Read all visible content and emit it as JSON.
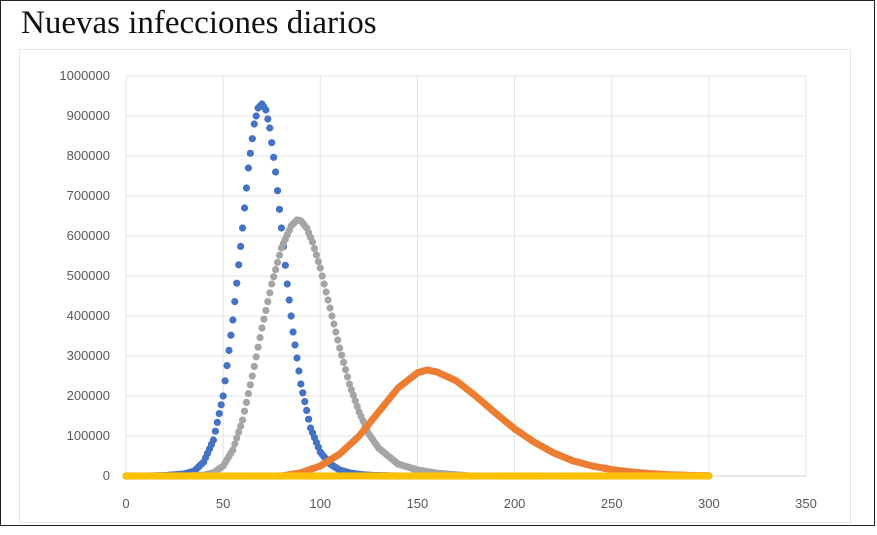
{
  "chart_data": {
    "type": "scatter",
    "title": "Nuevas infecciones diarios",
    "xlabel": "",
    "ylabel": "",
    "xlim": [
      0,
      350
    ],
    "ylim": [
      0,
      1000000
    ],
    "x_ticks": [
      0,
      50,
      100,
      150,
      200,
      250,
      300,
      350
    ],
    "y_ticks": [
      0,
      100000,
      200000,
      300000,
      400000,
      500000,
      600000,
      700000,
      800000,
      900000,
      1000000
    ],
    "grid": true,
    "legend": "none",
    "series": [
      {
        "color": "#4472C4",
        "x": [
          0,
          10,
          20,
          30,
          35,
          40,
          45,
          50,
          55,
          60,
          63,
          66,
          68,
          70,
          72,
          74,
          77,
          80,
          83,
          86,
          90,
          95,
          100,
          105,
          110,
          115,
          120,
          125,
          130,
          135,
          140
        ],
        "y": [
          0,
          0,
          1000,
          5000,
          12000,
          35000,
          90000,
          200000,
          390000,
          620000,
          770000,
          880000,
          920000,
          930000,
          915000,
          870000,
          760000,
          620000,
          480000,
          360000,
          230000,
          120000,
          60000,
          30000,
          15000,
          8000,
          4000,
          2000,
          1000,
          500,
          0
        ]
      },
      {
        "color": "#A5A5A5",
        "x": [
          0,
          20,
          30,
          40,
          45,
          50,
          55,
          60,
          65,
          70,
          75,
          80,
          85,
          88,
          90,
          93,
          96,
          100,
          105,
          110,
          115,
          120,
          125,
          130,
          140,
          150,
          160,
          170,
          175
        ],
        "y": [
          0,
          0,
          0,
          2000,
          8000,
          25000,
          65000,
          140000,
          250000,
          370000,
          480000,
          570000,
          625000,
          640000,
          638000,
          620000,
          585000,
          520000,
          420000,
          320000,
          230000,
          160000,
          105000,
          70000,
          30000,
          15000,
          7000,
          3000,
          1000
        ]
      },
      {
        "color": "#ED7D31",
        "x": [
          80,
          90,
          100,
          110,
          120,
          130,
          140,
          150,
          155,
          160,
          170,
          180,
          190,
          200,
          210,
          220,
          230,
          240,
          250,
          260,
          270,
          280,
          290,
          300
        ],
        "y": [
          0,
          8000,
          25000,
          55000,
          100000,
          160000,
          220000,
          258000,
          265000,
          260000,
          238000,
          200000,
          158000,
          118000,
          85000,
          58000,
          38000,
          25000,
          16000,
          10000,
          6000,
          3000,
          1500,
          500
        ]
      },
      {
        "color": "#FFC000",
        "x": [
          0,
          10,
          20,
          30,
          40,
          50,
          60,
          70,
          80,
          90,
          100,
          110,
          120,
          130,
          140,
          150,
          160,
          170,
          180,
          190,
          200,
          210,
          220,
          230,
          240,
          250,
          260,
          270,
          280,
          290,
          300
        ],
        "y": [
          0,
          0,
          0,
          0,
          0,
          0,
          0,
          0,
          0,
          0,
          0,
          0,
          0,
          0,
          0,
          0,
          0,
          0,
          0,
          0,
          0,
          0,
          0,
          0,
          0,
          0,
          0,
          0,
          0,
          0,
          0
        ]
      }
    ]
  }
}
